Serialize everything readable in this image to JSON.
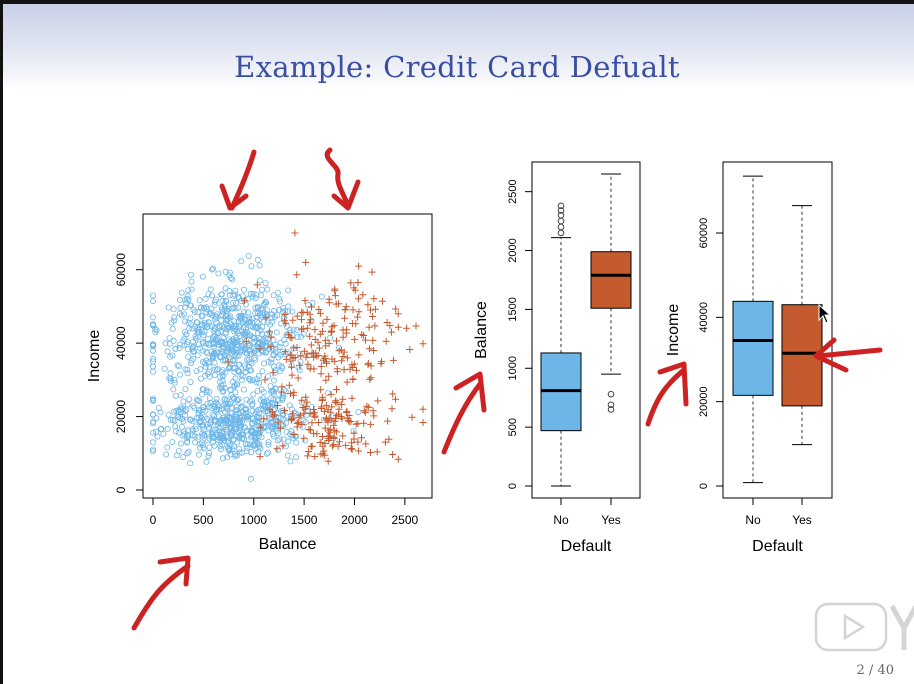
{
  "slide": {
    "title": "Example: Credit Card Defualt",
    "page_number": "2 / 40"
  },
  "colors": {
    "no_default": "#6cb6e8",
    "yes_default": "#c55a2e",
    "title": "#3a4fa3",
    "annotation": "#cc2222"
  },
  "chart_data": [
    {
      "type": "scatter",
      "xlabel": "Balance",
      "ylabel": "Income",
      "xlim": [
        0,
        2700
      ],
      "ylim": [
        0,
        73000
      ],
      "xticks": [
        0,
        500,
        1000,
        1500,
        2000,
        2500
      ],
      "yticks": [
        0,
        20000,
        40000,
        60000
      ],
      "series": [
        {
          "marker": "circle",
          "color": "#6cb6e8",
          "cluster": {
            "balance_mean": 780,
            "balance_sd": 370,
            "income_mean": 36000,
            "income_sd": 13500,
            "count": 1150
          }
        },
        {
          "marker": "plus",
          "color": "#c55a2e",
          "cluster": {
            "balance_mean": 1760,
            "balance_sd": 330,
            "income_mean": 32000,
            "income_sd": 13500,
            "count": 330
          }
        }
      ]
    },
    {
      "type": "box",
      "xlabel": "Default",
      "ylabel": "Balance",
      "categories": [
        "No",
        "Yes"
      ],
      "ylim": [
        0,
        2650
      ],
      "yticks": [
        0,
        500,
        1000,
        1500,
        2000,
        2500
      ],
      "boxes": [
        {
          "category": "No",
          "min": 0,
          "q1": 470,
          "median": 810,
          "q3": 1130,
          "max": 2110,
          "outliers": [
            2150,
            2200,
            2250,
            2300,
            2340,
            2380
          ],
          "color": "#6cb6e8"
        },
        {
          "category": "Yes",
          "min": 950,
          "q1": 1510,
          "median": 1790,
          "q3": 1990,
          "max": 2650,
          "outliers": [
            650,
            690,
            780
          ],
          "color": "#c55a2e"
        }
      ]
    },
    {
      "type": "box",
      "xlabel": "Default",
      "ylabel": "Income",
      "categories": [
        "No",
        "Yes"
      ],
      "ylim": [
        0,
        74000
      ],
      "yticks": [
        0,
        20000,
        40000,
        60000
      ],
      "boxes": [
        {
          "category": "No",
          "min": 800,
          "q1": 21500,
          "median": 34500,
          "q3": 43800,
          "max": 73500,
          "outliers": [],
          "color": "#6cb6e8"
        },
        {
          "category": "Yes",
          "min": 9800,
          "q1": 19000,
          "median": 31500,
          "q3": 43000,
          "max": 66500,
          "outliers": [],
          "color": "#c55a2e"
        }
      ]
    }
  ]
}
